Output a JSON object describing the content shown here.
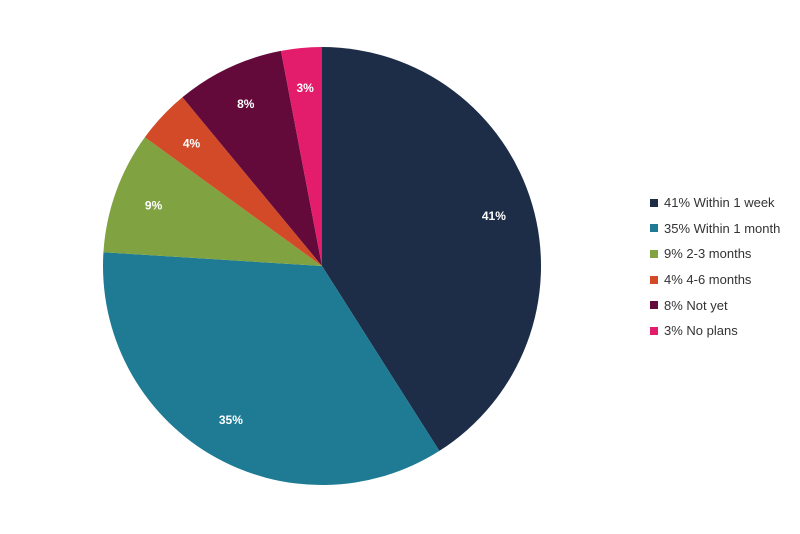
{
  "chart_data": {
    "type": "pie",
    "title": "",
    "start_angle_deg": 0,
    "direction": "clockwise",
    "legend_position": "right",
    "slices": [
      {
        "label": "Within 1 week",
        "value": 41,
        "percent_label": "41%",
        "legend_label": "41% Within 1 week",
        "color": "#1d2d47"
      },
      {
        "label": "Within 1 month",
        "value": 35,
        "percent_label": "35%",
        "legend_label": "35% Within 1 month",
        "color": "#1e7b93"
      },
      {
        "label": "2-3 months",
        "value": 9,
        "percent_label": "9%",
        "legend_label": "9% 2-3 months",
        "color": "#80a241"
      },
      {
        "label": "4-6 months",
        "value": 4,
        "percent_label": "4%",
        "legend_label": "4% 4-6 months",
        "color": "#d24a27"
      },
      {
        "label": "Not yet",
        "value": 8,
        "percent_label": "8%",
        "legend_label": "8% Not yet",
        "color": "#640a3b"
      },
      {
        "label": "No plans",
        "value": 3,
        "percent_label": "3%",
        "legend_label": "3% No plans",
        "color": "#e31c6b"
      }
    ]
  }
}
